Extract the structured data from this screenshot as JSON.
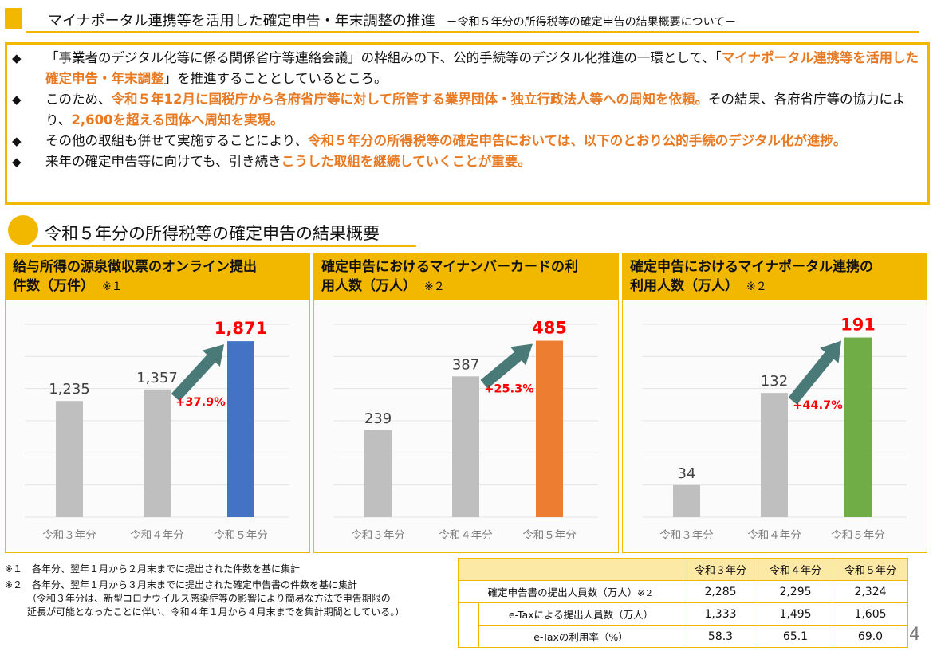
{
  "header": {
    "title": "マイナポータル連携等を活用した確定申告・年末調整の推進",
    "subtitle": "－令和５年分の所得税等の確定申告の結果概要について－"
  },
  "summary": [
    {
      "parts": [
        {
          "t": "「事業者のデジタル化等に係る関係省庁等連絡会議」の枠組みの下、公的手続等のデジタル化推進の一環として、「",
          "h": false
        },
        {
          "t": "マイナポータル連携等を活用した確定申告・年末調整",
          "h": true
        },
        {
          "t": "」を推進することとしているところ。",
          "h": false
        }
      ]
    },
    {
      "parts": [
        {
          "t": "このため、",
          "h": false
        },
        {
          "t": "令和５年12月に国税庁から各府省庁等に対して所管する業界団体・独立行政法人等への周知を依頼。",
          "h": true
        },
        {
          "t": "その結果、各府省庁等の協力により、",
          "h": false
        },
        {
          "t": "2,600を超える団体へ周知を実現。",
          "h": true
        }
      ]
    },
    {
      "parts": [
        {
          "t": "その他の取組も併せて実施することにより、",
          "h": false
        },
        {
          "t": "令和５年分の所得税等の確定申告においては、以下のとおり公的手続のデジタル化が進捗。",
          "h": true
        }
      ]
    },
    {
      "parts": [
        {
          "t": "来年の確定申告等に向けても、引き続き",
          "h": false
        },
        {
          "t": "こうした取組を継続していくことが重要。",
          "h": true
        }
      ]
    }
  ],
  "bullet_symbol": "◆",
  "section_title": "令和５年分の所得税等の確定申告の結果概要",
  "chart_data": [
    {
      "type": "bar",
      "title": "給与所得の源泉徴収票のオンライン提出件数（万件）",
      "note": "※１",
      "categories": [
        "令和３年分",
        "令和４年分",
        "令和５年分"
      ],
      "values": [
        1235,
        1357,
        1871
      ],
      "value_labels": [
        "1,235",
        "1,357",
        "1,871"
      ],
      "growth_label": "+37.9%",
      "ylim": [
        0,
        2050
      ],
      "grid": true,
      "colors": [
        "#bfbfbf",
        "#bfbfbf",
        "#4472c4"
      ]
    },
    {
      "type": "bar",
      "title": "確定申告におけるマイナンバーカードの利用人数（万人）",
      "note": "※２",
      "categories": [
        "令和３年分",
        "令和４年分",
        "令和５年分"
      ],
      "values": [
        239,
        387,
        485
      ],
      "value_labels": [
        "239",
        "387",
        "485"
      ],
      "growth_label": "+25.3%",
      "ylim": [
        0,
        530
      ],
      "grid": true,
      "colors": [
        "#bfbfbf",
        "#bfbfbf",
        "#ed7d31"
      ]
    },
    {
      "type": "bar",
      "title": "確定申告におけるマイナポータル連携の利用人数（万人）",
      "note": "※２",
      "categories": [
        "令和３年分",
        "令和４年分",
        "令和５年分"
      ],
      "values": [
        34,
        132,
        191
      ],
      "value_labels": [
        "34",
        "132",
        "191"
      ],
      "growth_label": "+44.7%",
      "ylim": [
        0,
        205
      ],
      "grid": true,
      "colors": [
        "#bfbfbf",
        "#bfbfbf",
        "#70ad47"
      ]
    }
  ],
  "chart_titles_split": [
    [
      "給与所得の源泉徴収票のオンライン提出",
      "件数（万件）"
    ],
    [
      "確定申告におけるマイナンバーカードの利",
      "用人数（万人）"
    ],
    [
      "確定申告におけるマイナポータル連携の",
      "利用人数（万人）"
    ]
  ],
  "footnotes": [
    "※１　各年分、翌年１月から２月末までに提出された件数を基に集計",
    "※２　各年分、翌年１月から３月末までに提出された確定申告書の件数を基に集計",
    "（令和３年分は、新型コロナウイルス感染症等の影響により簡易な方法で申告期限の",
    "延長が可能となったことに伴い、令和４年１月から４月末までを集計期間としている。）"
  ],
  "table": {
    "headers": [
      "令和３年分",
      "令和４年分",
      "令和５年分"
    ],
    "rows": [
      {
        "label": "確定申告書の提出人員数（万人）",
        "note": "※２",
        "values": [
          "2,285",
          "2,295",
          "2,324"
        ]
      },
      {
        "label": "e-Taxによる提出人員数（万人）",
        "note": "",
        "values": [
          "1,333",
          "1,495",
          "1,605"
        ]
      },
      {
        "label": "e-Taxの利用率（%）",
        "note": "",
        "values": [
          "58.3",
          "65.1",
          "69.0"
        ]
      }
    ]
  },
  "page_number": "4",
  "colors": {
    "accent": "#f2b800",
    "highlight": "#e87a23",
    "growth": "#ff0000",
    "arrow": "#4a7a78"
  }
}
